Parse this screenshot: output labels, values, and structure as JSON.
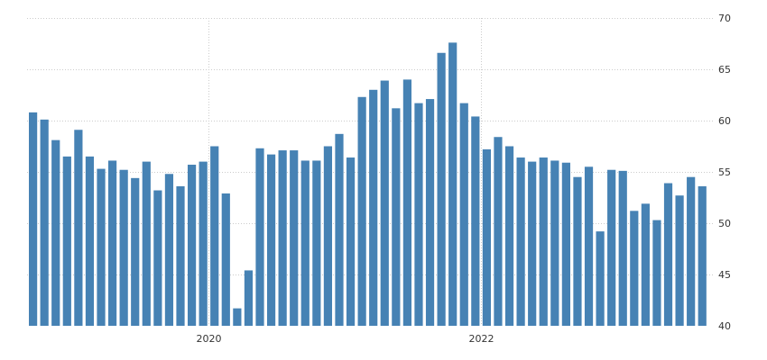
{
  "chart_data": {
    "type": "bar",
    "title": "",
    "xlabel": "",
    "ylabel": "",
    "ylim": [
      40,
      70
    ],
    "yticks": [
      40,
      45,
      50,
      55,
      60,
      65,
      70
    ],
    "y_axis_side": "right",
    "grid": true,
    "bar_color": "#4682b4",
    "x_tick_labels": [
      {
        "label": "2020",
        "index": 15.5
      },
      {
        "label": "2022",
        "index": 39.5
      }
    ],
    "values": [
      60.8,
      60.1,
      58.1,
      56.5,
      59.1,
      56.5,
      55.3,
      56.1,
      55.2,
      54.4,
      56.0,
      53.2,
      54.8,
      53.6,
      55.7,
      56.0,
      57.5,
      52.9,
      41.7,
      45.4,
      57.3,
      56.7,
      57.1,
      57.1,
      56.1,
      56.1,
      57.5,
      58.7,
      56.4,
      62.3,
      63.0,
      63.9,
      61.2,
      64.0,
      61.7,
      62.1,
      66.6,
      67.6,
      61.7,
      60.4,
      57.2,
      58.4,
      57.5,
      56.4,
      56.0,
      56.4,
      56.1,
      55.9,
      54.5,
      55.5,
      49.2,
      55.2,
      55.1,
      51.2,
      51.9,
      50.3,
      53.9,
      52.7,
      54.5,
      53.6
    ]
  }
}
